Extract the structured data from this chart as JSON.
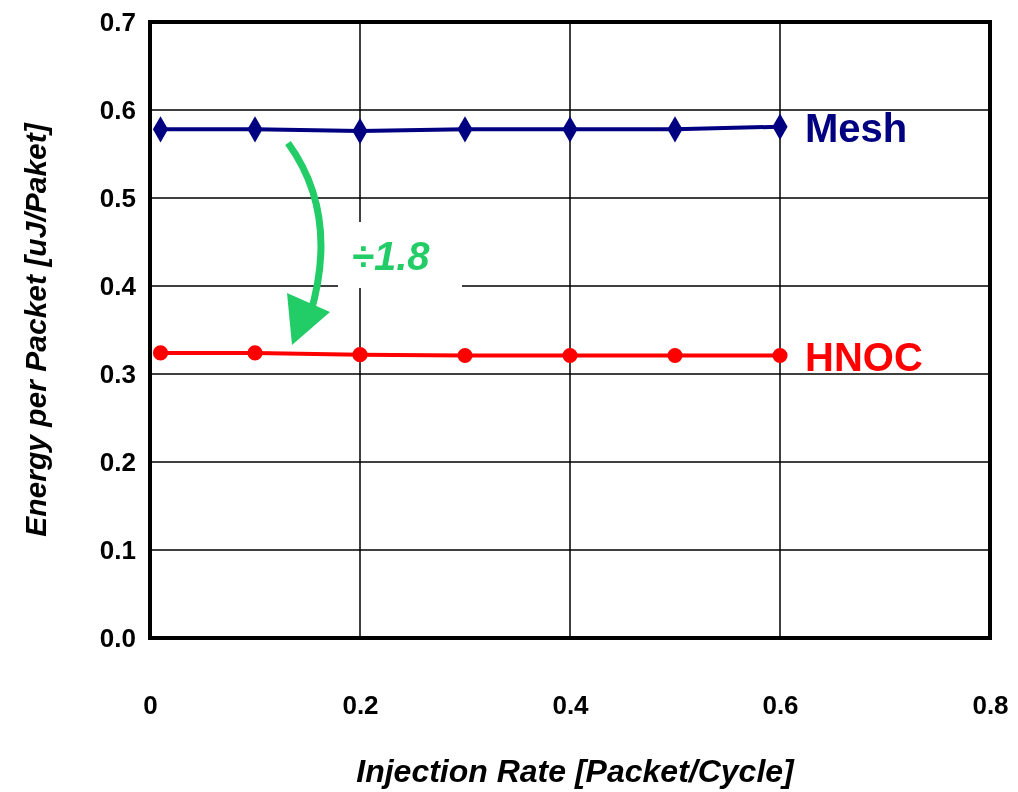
{
  "chart_data": {
    "type": "line",
    "xlabel": "Injection Rate [Packet/Cycle]",
    "ylabel": "Energy per Packet [uJ/Paket]",
    "x": [
      0.01,
      0.1,
      0.2,
      0.3,
      0.4,
      0.5,
      0.6
    ],
    "series": [
      {
        "name": "Mesh",
        "color": "#000080",
        "marker": "diamond",
        "values": [
          0.578,
          0.578,
          0.576,
          0.578,
          0.578,
          0.578,
          0.581
        ]
      },
      {
        "name": "HNOC",
        "color": "#ff0000",
        "marker": "circle",
        "values": [
          0.324,
          0.324,
          0.322,
          0.321,
          0.321,
          0.321,
          0.321
        ]
      }
    ],
    "xlim": [
      0,
      0.8
    ],
    "xticks": [
      0,
      0.2,
      0.4,
      0.6,
      0.8
    ],
    "ylim": [
      0,
      0.7
    ],
    "yticks": [
      {
        "value": 0,
        "label": "0.0"
      },
      0.1,
      0.2,
      0.3,
      0.4,
      0.5,
      0.6,
      0.7
    ],
    "grid": true,
    "legend": false,
    "line_style": "solid",
    "annotations": [
      "÷1.8"
    ]
  }
}
